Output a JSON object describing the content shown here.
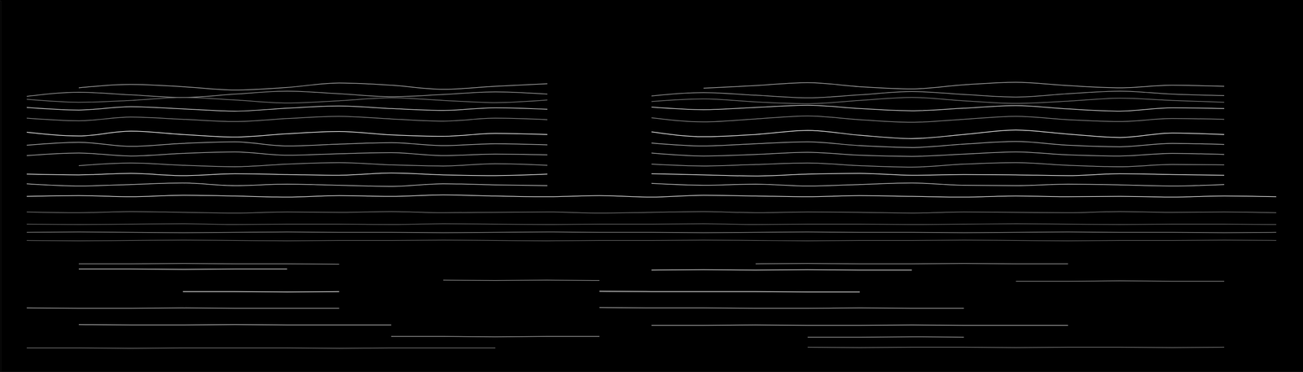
{
  "chart_data": {
    "type": "line",
    "x": [
      2,
      6,
      10,
      14,
      18,
      22,
      26,
      30,
      34,
      38,
      42,
      46,
      50,
      54,
      58,
      62,
      66,
      70,
      74,
      78,
      82,
      86,
      90,
      94,
      98
    ],
    "xlim": [
      0,
      100
    ],
    "ylim": [
      0,
      100
    ],
    "xticks": [],
    "yticks": [],
    "tick_labels": false,
    "grid": false,
    "series": [
      {
        "color": "#9a9a9a",
        "values": [
          null,
          76.5,
          77.4,
          76.8,
          75.9,
          76.6,
          77.8,
          77.2,
          76.1,
          76.9,
          77.6,
          null,
          null,
          76.4,
          77.1,
          77.9,
          76.8,
          76.2,
          77.3,
          78.0,
          77.1,
          76.5,
          77.2,
          76.9,
          null
        ]
      },
      {
        "color": "#8a8a8a",
        "values": [
          74.2,
          75.3,
          74.6,
          73.9,
          74.8,
          75.6,
          74.9,
          74.1,
          74.7,
          75.4,
          74.8,
          null,
          74.3,
          75.2,
          74.5,
          73.8,
          74.6,
          75.5,
          74.7,
          74.0,
          74.9,
          75.6,
          74.8,
          74.4,
          null
        ]
      },
      {
        "color": "#6f6f6f",
        "values": [
          73.4,
          72.6,
          73.1,
          73.9,
          73.2,
          72.4,
          73.0,
          73.8,
          73.1,
          72.5,
          73.2,
          null,
          72.8,
          73.5,
          72.7,
          72.2,
          73.1,
          73.9,
          73.0,
          72.3,
          72.9,
          73.7,
          73.1,
          72.6,
          null
        ]
      },
      {
        "color": "#bdbdbd",
        "values": [
          71.2,
          70.5,
          71.4,
          70.8,
          70.2,
          71.0,
          71.6,
          70.9,
          70.4,
          71.1,
          70.7,
          null,
          71.3,
          70.6,
          71.2,
          71.8,
          70.9,
          70.3,
          71.0,
          71.7,
          70.8,
          70.2,
          71.1,
          70.9,
          null
        ]
      },
      {
        "color": "#7a7a7a",
        "values": [
          68.3,
          67.6,
          68.6,
          68.0,
          67.4,
          68.2,
          68.8,
          68.1,
          67.5,
          68.3,
          67.9,
          null,
          68.4,
          67.3,
          68.1,
          68.9,
          67.9,
          67.2,
          68.0,
          68.8,
          67.9,
          67.4,
          68.2,
          68.0,
          null
        ]
      },
      {
        "color": "#e0e0e0",
        "values": [
          64.5,
          63.5,
          64.8,
          63.9,
          63.2,
          64.1,
          64.7,
          63.8,
          63.4,
          64.2,
          63.9,
          null,
          64.6,
          63.3,
          63.9,
          65.0,
          63.7,
          62.8,
          63.9,
          65.1,
          64.0,
          63.1,
          64.3,
          63.9,
          null
        ]
      },
      {
        "color": "#a0a0a0",
        "values": [
          61.0,
          61.8,
          60.7,
          61.5,
          61.9,
          60.8,
          61.3,
          61.7,
          60.9,
          61.4,
          61.1,
          null,
          61.6,
          60.8,
          61.4,
          61.9,
          60.9,
          60.4,
          61.3,
          62.0,
          61.0,
          60.6,
          61.5,
          61.2,
          null
        ]
      },
      {
        "color": "#9c9c9c",
        "values": [
          58.2,
          58.9,
          58.1,
          58.8,
          59.2,
          58.3,
          58.7,
          59.0,
          58.2,
          58.6,
          58.4,
          null,
          58.9,
          58.1,
          58.5,
          59.1,
          58.3,
          58.0,
          58.6,
          59.2,
          58.4,
          58.1,
          58.8,
          58.5,
          null
        ]
      },
      {
        "color": "#8c8c8c",
        "values": [
          null,
          55.5,
          56.2,
          55.6,
          55.2,
          55.9,
          56.3,
          55.7,
          55.4,
          56.0,
          55.6,
          null,
          55.9,
          55.4,
          55.8,
          56.2,
          55.5,
          55.1,
          55.9,
          56.3,
          55.6,
          55.2,
          55.8,
          55.7,
          null
        ]
      },
      {
        "color": "#d8d8d8",
        "values": [
          53.2,
          53.0,
          53.4,
          52.8,
          53.3,
          53.1,
          52.9,
          53.5,
          53.0,
          52.8,
          53.2,
          null,
          53.3,
          53.0,
          52.7,
          53.2,
          53.4,
          52.9,
          53.1,
          53.0,
          52.8,
          53.3,
          53.1,
          52.9,
          null
        ]
      },
      {
        "color": "#b0b0b0",
        "values": [
          50.6,
          50.0,
          50.4,
          50.8,
          50.1,
          50.5,
          50.2,
          49.9,
          50.6,
          50.3,
          50.1,
          null,
          50.7,
          50.2,
          50.5,
          50.0,
          50.4,
          50.8,
          50.2,
          50.1,
          50.5,
          50.3,
          50.0,
          50.4,
          null
        ]
      },
      {
        "color": "#cfcfcf",
        "values": [
          47.2,
          47.4,
          47.1,
          47.5,
          47.3,
          47.0,
          47.4,
          47.2,
          47.6,
          47.3,
          47.1,
          47.4,
          47.0,
          47.5,
          47.3,
          47.1,
          47.4,
          47.2,
          47.0,
          47.3,
          47.1,
          47.2,
          47.0,
          47.3,
          47.1
        ]
      },
      {
        "color": "#6a6a6a",
        "values": [
          43.0,
          42.8,
          43.1,
          42.9,
          42.7,
          43.0,
          42.9,
          43.1,
          42.8,
          42.9,
          43.0,
          42.7,
          42.9,
          43.1,
          42.8,
          43.0,
          42.9,
          42.7,
          43.0,
          42.9,
          42.8,
          43.1,
          42.9,
          43.0,
          42.8
        ]
      },
      {
        "color": "#5a5a5a",
        "values": [
          39.7,
          39.6,
          39.7,
          39.8,
          39.6,
          39.7,
          39.7,
          39.6,
          39.8,
          39.7,
          39.6,
          39.7,
          39.7,
          39.8,
          39.6,
          39.7,
          39.7,
          39.6,
          39.7,
          39.8,
          39.7,
          39.6,
          39.7,
          39.7,
          39.6
        ]
      },
      {
        "color": "#777777",
        "values": [
          37.5,
          37.6,
          37.5,
          37.4,
          37.5,
          37.6,
          37.5,
          37.5,
          37.4,
          37.5,
          37.6,
          37.5,
          37.5,
          37.4,
          37.5,
          37.6,
          37.5,
          37.5,
          37.4,
          37.5,
          37.6,
          37.5,
          37.5,
          37.4,
          37.5
        ]
      },
      {
        "color": "#555555",
        "values": [
          35.3,
          35.2,
          35.3,
          35.4,
          35.3,
          35.2,
          35.3,
          35.3,
          35.4,
          35.3,
          35.2,
          35.3,
          35.3,
          35.4,
          35.3,
          35.2,
          35.3,
          35.3,
          35.4,
          35.3,
          35.2,
          35.3,
          35.3,
          35.4,
          35.3
        ]
      },
      {
        "color": "#888888",
        "values": [
          null,
          29.0,
          29.0,
          29.1,
          29.0,
          29.0,
          28.9,
          null,
          null,
          null,
          null,
          null,
          null,
          null,
          29.0,
          29.1,
          29.0,
          29.0,
          29.1,
          29.0,
          29.0,
          null,
          null,
          null,
          null
        ]
      },
      {
        "color": "#cccccc",
        "values": [
          null,
          27.6,
          27.6,
          27.5,
          27.6,
          27.6,
          null,
          null,
          null,
          null,
          null,
          null,
          27.3,
          27.4,
          27.3,
          27.4,
          27.3,
          27.3,
          null,
          null,
          null,
          null,
          null,
          null,
          null
        ]
      },
      {
        "color": "#7c7c7c",
        "values": [
          null,
          null,
          null,
          null,
          null,
          null,
          null,
          null,
          24.6,
          24.5,
          24.6,
          24.5,
          null,
          null,
          null,
          null,
          null,
          null,
          null,
          24.3,
          24.3,
          24.4,
          24.3,
          24.3,
          null
        ]
      },
      {
        "color": "#dddddd",
        "values": [
          null,
          null,
          null,
          21.5,
          21.5,
          21.4,
          21.5,
          null,
          null,
          null,
          null,
          21.6,
          21.5,
          21.5,
          21.5,
          21.4,
          21.4,
          null,
          null,
          null,
          null,
          null,
          null,
          null,
          null
        ]
      },
      {
        "color": "#9e9e9e",
        "values": [
          17.1,
          17.0,
          17.0,
          17.1,
          17.0,
          17.0,
          17.0,
          null,
          null,
          null,
          null,
          17.2,
          17.1,
          17.1,
          17.0,
          17.0,
          17.1,
          17.0,
          17.0,
          null,
          null,
          null,
          null,
          null,
          null
        ]
      },
      {
        "color": "#a8a8a8",
        "values": [
          null,
          12.6,
          12.5,
          12.5,
          12.6,
          12.5,
          12.5,
          12.5,
          null,
          null,
          null,
          null,
          12.4,
          12.4,
          12.5,
          12.4,
          12.4,
          12.5,
          12.4,
          12.4,
          12.4,
          null,
          null,
          null,
          null
        ]
      },
      {
        "color": "#8f8f8f",
        "values": [
          null,
          null,
          null,
          null,
          null,
          null,
          null,
          9.4,
          9.4,
          9.3,
          9.4,
          9.4,
          null,
          null,
          null,
          9.2,
          9.2,
          9.3,
          9.2,
          null,
          null,
          null,
          null,
          null,
          null
        ]
      },
      {
        "color": "#6e6e6e",
        "values": [
          6.3,
          6.3,
          6.2,
          6.3,
          6.3,
          6.3,
          6.2,
          6.3,
          6.3,
          6.3,
          null,
          null,
          null,
          null,
          null,
          6.5,
          6.4,
          6.5,
          6.5,
          6.4,
          6.5,
          6.5,
          6.4,
          6.5,
          null
        ]
      }
    ]
  }
}
